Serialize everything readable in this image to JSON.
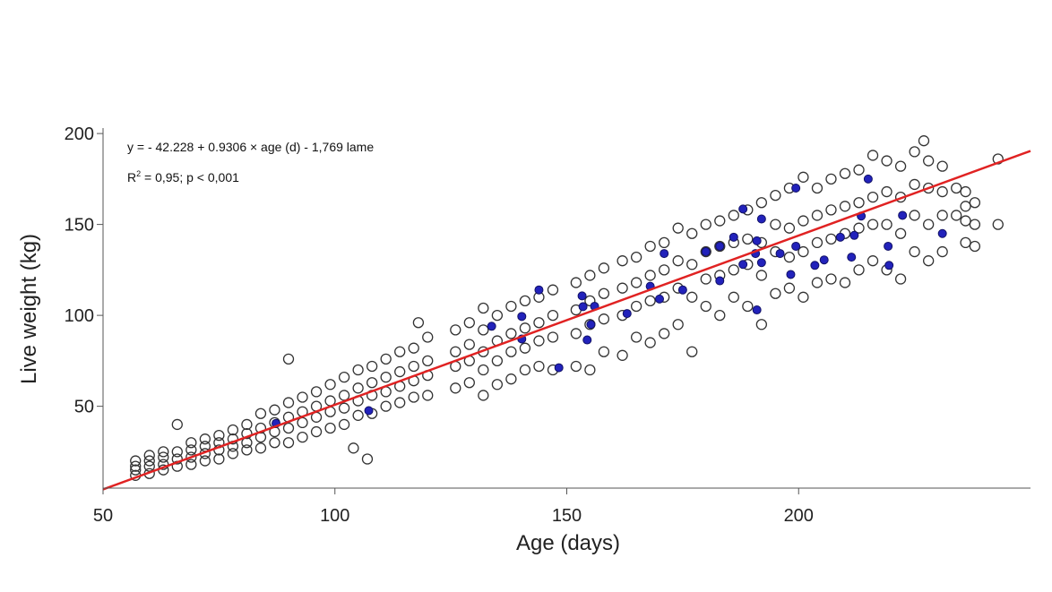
{
  "chart_data": {
    "type": "scatter",
    "xlabel": "Age (days)",
    "ylabel": "Live weight (kg)",
    "xlim": [
      50,
      250
    ],
    "ylim": [
      5,
      203
    ],
    "xticks": [
      50,
      100,
      150,
      200
    ],
    "yticks": [
      50,
      100,
      150,
      200
    ],
    "grid": false,
    "annotation": {
      "equation": "y = - 42.228 + 0.9306 × age (d) - 1,769 lame",
      "r2_prefix": "R",
      "r2_sup": "2",
      "r2_rest": " = 0,95; p < 0,001"
    },
    "regression": {
      "intercept": -42.228,
      "slope": 0.9306,
      "color": "#e02222"
    },
    "series": [
      {
        "marker": "open-circle",
        "color": "#333333",
        "columns": [
          [
            57,
            [
              12,
              15,
              17,
              20
            ]
          ],
          [
            60,
            [
              13,
              17,
              20,
              23
            ]
          ],
          [
            63,
            [
              15,
              18,
              22,
              25
            ]
          ],
          [
            66,
            [
              17,
              21,
              25,
              40
            ]
          ],
          [
            69,
            [
              18,
              22,
              26,
              30
            ]
          ],
          [
            72,
            [
              20,
              24,
              28,
              32
            ]
          ],
          [
            75,
            [
              21,
              26,
              30,
              34
            ]
          ],
          [
            78,
            [
              24,
              28,
              32,
              37
            ]
          ],
          [
            81,
            [
              26,
              30,
              35,
              40
            ]
          ],
          [
            84,
            [
              27,
              33,
              38,
              46
            ]
          ],
          [
            87,
            [
              30,
              36,
              41,
              48
            ]
          ],
          [
            90,
            [
              30,
              38,
              44,
              52,
              76
            ]
          ],
          [
            93,
            [
              33,
              41,
              47,
              55
            ]
          ],
          [
            96,
            [
              36,
              44,
              50,
              58
            ]
          ],
          [
            99,
            [
              38,
              47,
              53,
              62
            ]
          ],
          [
            102,
            [
              40,
              49,
              56,
              66
            ]
          ],
          [
            104,
            [
              27
            ]
          ],
          [
            105,
            [
              45,
              53,
              60,
              70
            ]
          ],
          [
            107,
            [
              21
            ]
          ],
          [
            108,
            [
              46,
              56,
              63,
              72
            ]
          ],
          [
            111,
            [
              50,
              58,
              66,
              76
            ]
          ],
          [
            114,
            [
              52,
              61,
              69,
              80
            ]
          ],
          [
            117,
            [
              55,
              64,
              72,
              82
            ]
          ],
          [
            118,
            [
              96
            ]
          ],
          [
            120,
            [
              56,
              67,
              75,
              88
            ]
          ],
          [
            126,
            [
              60,
              72,
              80,
              92
            ]
          ],
          [
            129,
            [
              63,
              75,
              84,
              96
            ]
          ],
          [
            132,
            [
              56,
              70,
              80,
              92,
              104
            ]
          ],
          [
            135,
            [
              62,
              75,
              86,
              100
            ]
          ],
          [
            138,
            [
              65,
              80,
              90,
              105
            ]
          ],
          [
            141,
            [
              70,
              82,
              93,
              108
            ]
          ],
          [
            144,
            [
              72,
              86,
              96,
              110
            ]
          ],
          [
            147,
            [
              70,
              88,
              100,
              114
            ]
          ],
          [
            152,
            [
              72,
              90,
              103,
              118
            ]
          ],
          [
            155,
            [
              70,
              95,
              108,
              122
            ]
          ],
          [
            158,
            [
              80,
              98,
              112,
              126
            ]
          ],
          [
            162,
            [
              78,
              100,
              115,
              130
            ]
          ],
          [
            165,
            [
              88,
              105,
              118,
              132
            ]
          ],
          [
            168,
            [
              85,
              108,
              122,
              138
            ]
          ],
          [
            171,
            [
              90,
              110,
              125,
              140
            ]
          ],
          [
            174,
            [
              95,
              115,
              130,
              148
            ]
          ],
          [
            177,
            [
              80,
              110,
              128,
              145
            ]
          ],
          [
            180,
            [
              105,
              120,
              135,
              150
            ]
          ],
          [
            183,
            [
              100,
              122,
              138,
              152
            ]
          ],
          [
            186,
            [
              110,
              125,
              140,
              155
            ]
          ],
          [
            189,
            [
              105,
              128,
              142,
              158
            ]
          ],
          [
            192,
            [
              95,
              122,
              140,
              162
            ]
          ],
          [
            195,
            [
              112,
              135,
              150,
              166
            ]
          ],
          [
            198,
            [
              115,
              132,
              148,
              170
            ]
          ],
          [
            201,
            [
              110,
              135,
              152,
              176
            ]
          ],
          [
            204,
            [
              118,
              140,
              155,
              170
            ]
          ],
          [
            207,
            [
              120,
              142,
              158,
              175
            ]
          ],
          [
            210,
            [
              118,
              145,
              160,
              178
            ]
          ],
          [
            213,
            [
              125,
              148,
              162,
              180
            ]
          ],
          [
            216,
            [
              130,
              150,
              165,
              188
            ]
          ],
          [
            219,
            [
              125,
              150,
              168,
              185
            ]
          ],
          [
            222,
            [
              120,
              145,
              165,
              182
            ]
          ],
          [
            225,
            [
              135,
              155,
              172,
              190
            ]
          ],
          [
            227,
            [
              196
            ]
          ],
          [
            228,
            [
              130,
              150,
              170,
              185
            ]
          ],
          [
            231,
            [
              135,
              155,
              168,
              182
            ]
          ],
          [
            234,
            [
              155,
              170
            ]
          ],
          [
            236,
            [
              140,
              152,
              160,
              168
            ]
          ],
          [
            238,
            [
              138,
              150,
              162
            ]
          ],
          [
            243,
            [
              150,
              186
            ]
          ]
        ]
      },
      {
        "marker": "filled-circle",
        "color": "#2222bb",
        "points": [
          [
            87.3,
            40.6
          ],
          [
            107.3,
            47.6
          ],
          [
            133.8,
            94
          ],
          [
            140.3,
            99.4
          ],
          [
            140.3,
            87
          ],
          [
            144,
            114
          ],
          [
            148.3,
            71.2
          ],
          [
            153.3,
            110.7
          ],
          [
            153.5,
            104.8
          ],
          [
            156,
            105
          ],
          [
            155.2,
            95
          ],
          [
            154.4,
            86.5
          ],
          [
            163,
            101
          ],
          [
            168,
            116
          ],
          [
            170,
            109
          ],
          [
            175,
            114
          ],
          [
            171,
            134
          ],
          [
            180,
            135
          ],
          [
            183,
            138
          ],
          [
            183,
            119
          ],
          [
            186,
            143
          ],
          [
            188,
            158.5
          ],
          [
            188,
            128
          ],
          [
            191,
            141
          ],
          [
            190.7,
            134
          ],
          [
            192,
            129
          ],
          [
            191,
            103
          ],
          [
            192,
            153
          ],
          [
            196,
            134
          ],
          [
            198.3,
            122.5
          ],
          [
            199.4,
            138
          ],
          [
            199.4,
            170
          ],
          [
            203.5,
            127.5
          ],
          [
            205.5,
            130.5
          ],
          [
            209,
            143
          ],
          [
            211.4,
            132
          ],
          [
            212,
            144
          ],
          [
            213.5,
            154.6
          ],
          [
            215,
            175
          ],
          [
            222.4,
            155
          ],
          [
            219.3,
            138
          ],
          [
            219.5,
            127.5
          ],
          [
            231,
            145
          ]
        ]
      }
    ]
  }
}
